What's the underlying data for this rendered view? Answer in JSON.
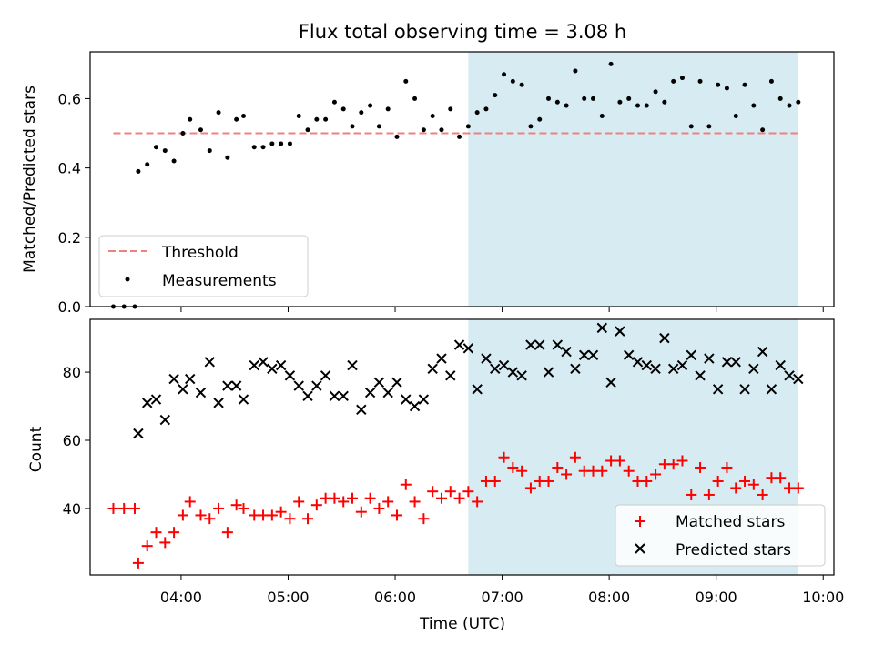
{
  "chart_data": [
    {
      "type": "scatter",
      "title": "Flux total observing time = 3.08 h",
      "xlabel": "",
      "ylabel": "Matched/Predicted stars",
      "xlim": [
        "03:09",
        "10:06"
      ],
      "ylim": [
        0,
        0.735
      ],
      "yticks": [
        "0.0",
        "0.2",
        "0.4",
        "0.6"
      ],
      "shaded_span": {
        "x0": "06:41",
        "x1": "09:46",
        "color": "#add8e6"
      },
      "legend": {
        "placement": "lower-left",
        "entries": [
          "Threshold",
          "Measurements"
        ]
      },
      "series": [
        {
          "name": "Threshold",
          "kind": "hline",
          "y": 0.5,
          "x0": "03:22",
          "x1": "09:47",
          "color": "#f08080"
        },
        {
          "name": "Measurements",
          "kind": "points",
          "color": "#000000",
          "points": [
            [
              "03:22",
              0.0
            ],
            [
              "03:28",
              0.0
            ],
            [
              "03:34",
              0.0
            ],
            [
              "03:36",
              0.39
            ],
            [
              "03:41",
              0.41
            ],
            [
              "03:46",
              0.46
            ],
            [
              "03:51",
              0.45
            ],
            [
              "03:56",
              0.42
            ],
            [
              "04:01",
              0.5
            ],
            [
              "04:05",
              0.54
            ],
            [
              "04:11",
              0.51
            ],
            [
              "04:16",
              0.45
            ],
            [
              "04:21",
              0.56
            ],
            [
              "04:26",
              0.43
            ],
            [
              "04:31",
              0.54
            ],
            [
              "04:35",
              0.55
            ],
            [
              "04:41",
              0.46
            ],
            [
              "04:46",
              0.46
            ],
            [
              "04:51",
              0.47
            ],
            [
              "04:56",
              0.47
            ],
            [
              "05:01",
              0.47
            ],
            [
              "05:06",
              0.55
            ],
            [
              "05:11",
              0.51
            ],
            [
              "05:16",
              0.54
            ],
            [
              "05:21",
              0.54
            ],
            [
              "05:26",
              0.59
            ],
            [
              "05:31",
              0.57
            ],
            [
              "05:36",
              0.52
            ],
            [
              "05:41",
              0.56
            ],
            [
              "05:46",
              0.58
            ],
            [
              "05:51",
              0.52
            ],
            [
              "05:56",
              0.57
            ],
            [
              "06:01",
              0.49
            ],
            [
              "06:06",
              0.65
            ],
            [
              "06:11",
              0.6
            ],
            [
              "06:16",
              0.51
            ],
            [
              "06:21",
              0.55
            ],
            [
              "06:26",
              0.51
            ],
            [
              "06:31",
              0.57
            ],
            [
              "06:36",
              0.49
            ],
            [
              "06:41",
              0.52
            ],
            [
              "06:46",
              0.56
            ],
            [
              "06:51",
              0.57
            ],
            [
              "06:56",
              0.61
            ],
            [
              "07:01",
              0.67
            ],
            [
              "07:06",
              0.65
            ],
            [
              "07:11",
              0.64
            ],
            [
              "07:16",
              0.52
            ],
            [
              "07:21",
              0.54
            ],
            [
              "07:26",
              0.6
            ],
            [
              "07:31",
              0.59
            ],
            [
              "07:36",
              0.58
            ],
            [
              "07:41",
              0.68
            ],
            [
              "07:46",
              0.6
            ],
            [
              "07:51",
              0.6
            ],
            [
              "07:56",
              0.55
            ],
            [
              "08:01",
              0.7
            ],
            [
              "08:06",
              0.59
            ],
            [
              "08:11",
              0.6
            ],
            [
              "08:16",
              0.58
            ],
            [
              "08:21",
              0.58
            ],
            [
              "08:26",
              0.62
            ],
            [
              "08:31",
              0.59
            ],
            [
              "08:36",
              0.65
            ],
            [
              "08:41",
              0.66
            ],
            [
              "08:46",
              0.52
            ],
            [
              "08:51",
              0.65
            ],
            [
              "08:56",
              0.52
            ],
            [
              "09:01",
              0.64
            ],
            [
              "09:06",
              0.63
            ],
            [
              "09:11",
              0.55
            ],
            [
              "09:16",
              0.64
            ],
            [
              "09:21",
              0.58
            ],
            [
              "09:26",
              0.51
            ],
            [
              "09:31",
              0.65
            ],
            [
              "09:36",
              0.6
            ],
            [
              "09:41",
              0.58
            ],
            [
              "09:46",
              0.59
            ]
          ]
        }
      ]
    },
    {
      "type": "scatter",
      "title": "",
      "xlabel": "Time (UTC)",
      "ylabel": "Count",
      "xlim": [
        "03:09",
        "10:06"
      ],
      "ylim": [
        20.5,
        95.5
      ],
      "xticks": [
        "04:00",
        "05:00",
        "06:00",
        "07:00",
        "08:00",
        "09:00",
        "10:00"
      ],
      "yticks": [
        "40",
        "60",
        "80"
      ],
      "shaded_span": {
        "x0": "06:41",
        "x1": "09:46",
        "color": "#add8e6"
      },
      "legend": {
        "placement": "lower-right",
        "entries": [
          "Matched stars",
          "Predicted stars"
        ]
      },
      "series": [
        {
          "name": "Matched stars",
          "marker": "plus",
          "color": "#ff0000",
          "points": [
            [
              "03:22",
              40
            ],
            [
              "03:28",
              40
            ],
            [
              "03:34",
              40
            ],
            [
              "03:36",
              24
            ],
            [
              "03:41",
              29
            ],
            [
              "03:46",
              33
            ],
            [
              "03:51",
              30
            ],
            [
              "03:56",
              33
            ],
            [
              "04:01",
              38
            ],
            [
              "04:05",
              42
            ],
            [
              "04:11",
              38
            ],
            [
              "04:16",
              37
            ],
            [
              "04:21",
              40
            ],
            [
              "04:26",
              33
            ],
            [
              "04:31",
              41
            ],
            [
              "04:35",
              40
            ],
            [
              "04:41",
              38
            ],
            [
              "04:46",
              38
            ],
            [
              "04:51",
              38
            ],
            [
              "04:56",
              39
            ],
            [
              "05:01",
              37
            ],
            [
              "05:06",
              42
            ],
            [
              "05:11",
              37
            ],
            [
              "05:16",
              41
            ],
            [
              "05:21",
              43
            ],
            [
              "05:26",
              43
            ],
            [
              "05:31",
              42
            ],
            [
              "05:36",
              43
            ],
            [
              "05:41",
              39
            ],
            [
              "05:46",
              43
            ],
            [
              "05:51",
              40
            ],
            [
              "05:56",
              42
            ],
            [
              "06:01",
              38
            ],
            [
              "06:06",
              47
            ],
            [
              "06:11",
              42
            ],
            [
              "06:16",
              37
            ],
            [
              "06:21",
              45
            ],
            [
              "06:26",
              43
            ],
            [
              "06:31",
              45
            ],
            [
              "06:36",
              43
            ],
            [
              "06:41",
              45
            ],
            [
              "06:46",
              42
            ],
            [
              "06:51",
              48
            ],
            [
              "06:56",
              48
            ],
            [
              "07:01",
              55
            ],
            [
              "07:06",
              52
            ],
            [
              "07:11",
              51
            ],
            [
              "07:16",
              46
            ],
            [
              "07:21",
              48
            ],
            [
              "07:26",
              48
            ],
            [
              "07:31",
              52
            ],
            [
              "07:36",
              50
            ],
            [
              "07:41",
              55
            ],
            [
              "07:46",
              51
            ],
            [
              "07:51",
              51
            ],
            [
              "07:56",
              51
            ],
            [
              "08:01",
              54
            ],
            [
              "08:06",
              54
            ],
            [
              "08:11",
              51
            ],
            [
              "08:16",
              48
            ],
            [
              "08:21",
              48
            ],
            [
              "08:26",
              50
            ],
            [
              "08:31",
              53
            ],
            [
              "08:36",
              53
            ],
            [
              "08:41",
              54
            ],
            [
              "08:46",
              44
            ],
            [
              "08:51",
              52
            ],
            [
              "08:56",
              44
            ],
            [
              "09:01",
              48
            ],
            [
              "09:06",
              52
            ],
            [
              "09:11",
              46
            ],
            [
              "09:16",
              48
            ],
            [
              "09:21",
              47
            ],
            [
              "09:26",
              44
            ],
            [
              "09:31",
              49
            ],
            [
              "09:36",
              49
            ],
            [
              "09:41",
              46
            ],
            [
              "09:46",
              46
            ]
          ]
        },
        {
          "name": "Predicted stars",
          "marker": "x",
          "color": "#000000",
          "points": [
            [
              "03:36",
              62
            ],
            [
              "03:41",
              71
            ],
            [
              "03:46",
              72
            ],
            [
              "03:51",
              66
            ],
            [
              "03:56",
              78
            ],
            [
              "04:01",
              75
            ],
            [
              "04:05",
              78
            ],
            [
              "04:11",
              74
            ],
            [
              "04:16",
              83
            ],
            [
              "04:21",
              71
            ],
            [
              "04:26",
              76
            ],
            [
              "04:31",
              76
            ],
            [
              "04:35",
              72
            ],
            [
              "04:41",
              82
            ],
            [
              "04:46",
              83
            ],
            [
              "04:51",
              81
            ],
            [
              "04:56",
              82
            ],
            [
              "05:01",
              79
            ],
            [
              "05:06",
              76
            ],
            [
              "05:11",
              73
            ],
            [
              "05:16",
              76
            ],
            [
              "05:21",
              79
            ],
            [
              "05:26",
              73
            ],
            [
              "05:31",
              73
            ],
            [
              "05:36",
              82
            ],
            [
              "05:41",
              69
            ],
            [
              "05:46",
              74
            ],
            [
              "05:51",
              77
            ],
            [
              "05:56",
              74
            ],
            [
              "06:01",
              77
            ],
            [
              "06:06",
              72
            ],
            [
              "06:11",
              70
            ],
            [
              "06:16",
              72
            ],
            [
              "06:21",
              81
            ],
            [
              "06:26",
              84
            ],
            [
              "06:31",
              79
            ],
            [
              "06:36",
              88
            ],
            [
              "06:41",
              87
            ],
            [
              "06:46",
              75
            ],
            [
              "06:51",
              84
            ],
            [
              "06:56",
              81
            ],
            [
              "07:01",
              82
            ],
            [
              "07:06",
              80
            ],
            [
              "07:11",
              79
            ],
            [
              "07:16",
              88
            ],
            [
              "07:21",
              88
            ],
            [
              "07:26",
              80
            ],
            [
              "07:31",
              88
            ],
            [
              "07:36",
              86
            ],
            [
              "07:41",
              81
            ],
            [
              "07:46",
              85
            ],
            [
              "07:51",
              85
            ],
            [
              "07:56",
              93
            ],
            [
              "08:01",
              77
            ],
            [
              "08:06",
              92
            ],
            [
              "08:11",
              85
            ],
            [
              "08:16",
              83
            ],
            [
              "08:21",
              82
            ],
            [
              "08:26",
              81
            ],
            [
              "08:31",
              90
            ],
            [
              "08:36",
              81
            ],
            [
              "08:41",
              82
            ],
            [
              "08:46",
              85
            ],
            [
              "08:51",
              79
            ],
            [
              "08:56",
              84
            ],
            [
              "09:01",
              75
            ],
            [
              "09:06",
              83
            ],
            [
              "09:11",
              83
            ],
            [
              "09:16",
              75
            ],
            [
              "09:21",
              81
            ],
            [
              "09:26",
              86
            ],
            [
              "09:31",
              75
            ],
            [
              "09:36",
              82
            ],
            [
              "09:41",
              79
            ],
            [
              "09:46",
              78
            ]
          ]
        }
      ]
    }
  ]
}
